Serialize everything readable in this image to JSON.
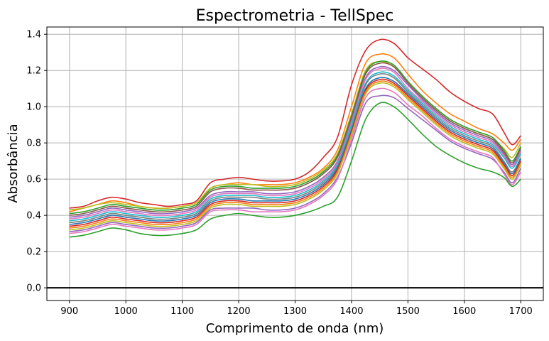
{
  "chart_data": {
    "type": "line",
    "title": "Espectrometria - TellSpec",
    "xlabel": "Comprimento de onda (nm)",
    "ylabel": "Absorbância",
    "xlim": [
      860,
      1740
    ],
    "ylim": [
      -0.07,
      1.44
    ],
    "x_ticks": [
      900,
      1000,
      1100,
      1200,
      1300,
      1400,
      1500,
      1600,
      1700
    ],
    "y_ticks": [
      0.0,
      0.2,
      0.4,
      0.6,
      0.8,
      1.0,
      1.2,
      1.4
    ],
    "x_tick_labels": [
      "900",
      "1000",
      "1100",
      "1200",
      "1300",
      "1400",
      "1500",
      "1600",
      "1700"
    ],
    "y_tick_labels": [
      "0.0",
      "0.2",
      "0.4",
      "0.6",
      "0.8",
      "1.0",
      "1.2",
      "1.4"
    ],
    "grid": true,
    "reference_line_y": 0.0,
    "x": [
      900,
      925,
      950,
      975,
      1000,
      1025,
      1050,
      1075,
      1100,
      1125,
      1150,
      1175,
      1200,
      1225,
      1250,
      1275,
      1300,
      1325,
      1350,
      1375,
      1400,
      1425,
      1450,
      1475,
      1500,
      1525,
      1550,
      1575,
      1600,
      1625,
      1650,
      1670,
      1685,
      1700
    ],
    "series": [
      {
        "color": "#d62728",
        "values": [
          0.44,
          0.45,
          0.48,
          0.5,
          0.49,
          0.47,
          0.46,
          0.45,
          0.46,
          0.48,
          0.58,
          0.6,
          0.61,
          0.6,
          0.59,
          0.59,
          0.6,
          0.64,
          0.72,
          0.83,
          1.12,
          1.31,
          1.37,
          1.35,
          1.27,
          1.21,
          1.15,
          1.08,
          1.03,
          0.99,
          0.96,
          0.86,
          0.79,
          0.84
        ]
      },
      {
        "color": "#ff7f0e",
        "values": [
          0.42,
          0.44,
          0.46,
          0.48,
          0.47,
          0.45,
          0.44,
          0.44,
          0.45,
          0.47,
          0.55,
          0.57,
          0.58,
          0.57,
          0.57,
          0.57,
          0.58,
          0.61,
          0.66,
          0.76,
          1.0,
          1.24,
          1.29,
          1.27,
          1.18,
          1.09,
          1.02,
          0.96,
          0.92,
          0.88,
          0.85,
          0.8,
          0.76,
          0.82
        ]
      },
      {
        "color": "#bcbd22",
        "values": [
          0.43,
          0.44,
          0.46,
          0.47,
          0.46,
          0.45,
          0.44,
          0.44,
          0.45,
          0.47,
          0.55,
          0.57,
          0.57,
          0.57,
          0.56,
          0.56,
          0.57,
          0.6,
          0.65,
          0.74,
          0.96,
          1.2,
          1.25,
          1.22,
          1.13,
          1.05,
          0.98,
          0.92,
          0.88,
          0.85,
          0.82,
          0.77,
          0.72,
          0.8
        ]
      },
      {
        "color": "#2ca02c",
        "values": [
          0.41,
          0.42,
          0.44,
          0.46,
          0.45,
          0.44,
          0.43,
          0.43,
          0.44,
          0.46,
          0.54,
          0.56,
          0.56,
          0.55,
          0.55,
          0.55,
          0.56,
          0.59,
          0.64,
          0.73,
          0.95,
          1.19,
          1.25,
          1.23,
          1.14,
          1.06,
          0.99,
          0.93,
          0.89,
          0.86,
          0.83,
          0.76,
          0.7,
          0.78
        ]
      },
      {
        "color": "#8c564b",
        "values": [
          0.4,
          0.41,
          0.43,
          0.45,
          0.44,
          0.43,
          0.42,
          0.42,
          0.43,
          0.45,
          0.53,
          0.55,
          0.55,
          0.54,
          0.54,
          0.54,
          0.55,
          0.58,
          0.63,
          0.72,
          0.94,
          1.18,
          1.24,
          1.22,
          1.13,
          1.05,
          0.98,
          0.92,
          0.88,
          0.85,
          0.82,
          0.75,
          0.69,
          0.77
        ]
      },
      {
        "color": "#9467bd",
        "values": [
          0.39,
          0.4,
          0.42,
          0.44,
          0.43,
          0.42,
          0.41,
          0.41,
          0.42,
          0.44,
          0.51,
          0.53,
          0.53,
          0.53,
          0.52,
          0.52,
          0.53,
          0.56,
          0.61,
          0.7,
          0.92,
          1.16,
          1.22,
          1.2,
          1.12,
          1.04,
          0.97,
          0.91,
          0.87,
          0.84,
          0.81,
          0.74,
          0.68,
          0.76
        ]
      },
      {
        "color": "#e377c2",
        "values": [
          0.38,
          0.39,
          0.41,
          0.43,
          0.42,
          0.41,
          0.4,
          0.4,
          0.41,
          0.43,
          0.5,
          0.52,
          0.52,
          0.52,
          0.51,
          0.51,
          0.52,
          0.55,
          0.6,
          0.69,
          0.91,
          1.15,
          1.21,
          1.19,
          1.1,
          1.03,
          0.96,
          0.9,
          0.86,
          0.83,
          0.8,
          0.73,
          0.67,
          0.75
        ]
      },
      {
        "color": "#17becf",
        "values": [
          0.37,
          0.38,
          0.4,
          0.42,
          0.41,
          0.4,
          0.39,
          0.39,
          0.4,
          0.42,
          0.49,
          0.51,
          0.51,
          0.51,
          0.5,
          0.5,
          0.51,
          0.54,
          0.59,
          0.68,
          0.9,
          1.13,
          1.19,
          1.17,
          1.09,
          1.02,
          0.95,
          0.89,
          0.85,
          0.82,
          0.79,
          0.72,
          0.66,
          0.74
        ]
      },
      {
        "color": "#7f7f7f",
        "values": [
          0.36,
          0.37,
          0.39,
          0.41,
          0.4,
          0.39,
          0.38,
          0.38,
          0.39,
          0.41,
          0.48,
          0.5,
          0.5,
          0.5,
          0.49,
          0.49,
          0.5,
          0.53,
          0.58,
          0.67,
          0.88,
          1.12,
          1.18,
          1.16,
          1.08,
          1.01,
          0.94,
          0.88,
          0.84,
          0.81,
          0.78,
          0.7,
          0.64,
          0.72
        ]
      },
      {
        "color": "#1f77b4",
        "values": [
          0.35,
          0.36,
          0.38,
          0.4,
          0.39,
          0.38,
          0.37,
          0.37,
          0.38,
          0.4,
          0.47,
          0.49,
          0.49,
          0.48,
          0.48,
          0.48,
          0.49,
          0.52,
          0.57,
          0.66,
          0.87,
          1.1,
          1.16,
          1.14,
          1.07,
          1.0,
          0.93,
          0.87,
          0.83,
          0.8,
          0.77,
          0.69,
          0.63,
          0.71
        ]
      },
      {
        "color": "#d62728",
        "values": [
          0.34,
          0.35,
          0.37,
          0.39,
          0.38,
          0.37,
          0.36,
          0.36,
          0.37,
          0.39,
          0.46,
          0.48,
          0.48,
          0.47,
          0.47,
          0.47,
          0.48,
          0.51,
          0.56,
          0.65,
          0.86,
          1.09,
          1.15,
          1.13,
          1.06,
          0.99,
          0.92,
          0.86,
          0.82,
          0.79,
          0.76,
          0.68,
          0.62,
          0.7
        ]
      },
      {
        "color": "#ff7f0e",
        "values": [
          0.33,
          0.34,
          0.36,
          0.38,
          0.37,
          0.36,
          0.35,
          0.35,
          0.36,
          0.38,
          0.45,
          0.47,
          0.47,
          0.46,
          0.46,
          0.46,
          0.47,
          0.5,
          0.55,
          0.64,
          0.85,
          1.08,
          1.14,
          1.12,
          1.05,
          0.98,
          0.91,
          0.85,
          0.81,
          0.78,
          0.75,
          0.67,
          0.61,
          0.69
        ]
      },
      {
        "color": "#bcbd22",
        "values": [
          0.32,
          0.33,
          0.35,
          0.37,
          0.36,
          0.35,
          0.34,
          0.34,
          0.35,
          0.37,
          0.44,
          0.46,
          0.46,
          0.45,
          0.45,
          0.45,
          0.46,
          0.49,
          0.54,
          0.63,
          0.84,
          1.07,
          1.13,
          1.11,
          1.04,
          0.97,
          0.9,
          0.84,
          0.8,
          0.77,
          0.74,
          0.66,
          0.6,
          0.68
        ]
      },
      {
        "color": "#9467bd",
        "values": [
          0.31,
          0.32,
          0.34,
          0.36,
          0.35,
          0.34,
          0.33,
          0.33,
          0.34,
          0.36,
          0.43,
          0.44,
          0.44,
          0.44,
          0.43,
          0.43,
          0.44,
          0.47,
          0.52,
          0.61,
          0.8,
          1.02,
          1.06,
          1.05,
          0.99,
          0.93,
          0.87,
          0.81,
          0.77,
          0.74,
          0.71,
          0.64,
          0.58,
          0.66
        ]
      },
      {
        "color": "#e377c2",
        "values": [
          0.3,
          0.31,
          0.33,
          0.35,
          0.34,
          0.33,
          0.32,
          0.32,
          0.33,
          0.35,
          0.42,
          0.43,
          0.43,
          0.42,
          0.42,
          0.42,
          0.43,
          0.46,
          0.51,
          0.6,
          0.82,
          1.05,
          1.1,
          1.08,
          1.01,
          0.95,
          0.88,
          0.82,
          0.78,
          0.75,
          0.72,
          0.63,
          0.57,
          0.64
        ]
      },
      {
        "color": "#2ca02c",
        "values": [
          0.28,
          0.29,
          0.31,
          0.33,
          0.32,
          0.3,
          0.29,
          0.29,
          0.3,
          0.32,
          0.38,
          0.4,
          0.41,
          0.4,
          0.39,
          0.39,
          0.4,
          0.42,
          0.45,
          0.5,
          0.7,
          0.93,
          1.02,
          1.0,
          0.93,
          0.85,
          0.78,
          0.73,
          0.69,
          0.66,
          0.64,
          0.61,
          0.56,
          0.6
        ]
      }
    ]
  }
}
